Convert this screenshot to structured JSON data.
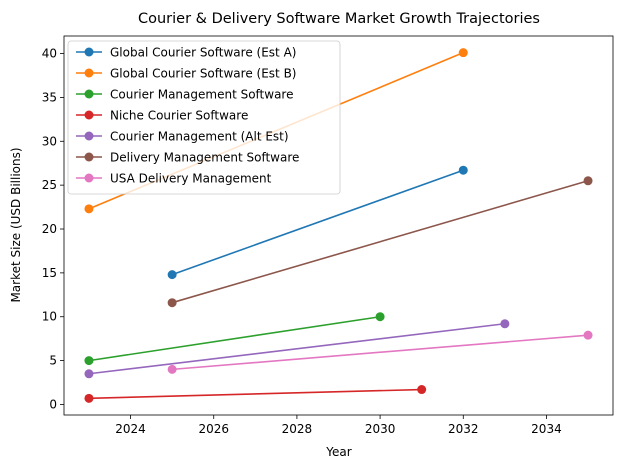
{
  "chart_data": {
    "type": "line",
    "title": "Courier & Delivery Software Market Growth Trajectories",
    "xlabel": "Year",
    "ylabel": "Market Size (USD Billions)",
    "xlim": [
      2022.4,
      2035.6
    ],
    "ylim": [
      -1.2,
      42.0
    ],
    "xticks": [
      2024,
      2026,
      2028,
      2030,
      2032,
      2034
    ],
    "yticks": [
      0,
      5,
      10,
      15,
      20,
      25,
      30,
      35,
      40
    ],
    "grid": false,
    "legend_position": "top-left",
    "series": [
      {
        "name": "Global Courier Software (Est A)",
        "color": "#1f77b4",
        "x": [
          2025,
          2032
        ],
        "y": [
          14.8,
          26.7
        ]
      },
      {
        "name": "Global Courier Software (Est B)",
        "color": "#ff7f0e",
        "x": [
          2023,
          2032
        ],
        "y": [
          22.3,
          40.1
        ]
      },
      {
        "name": "Courier Management Software",
        "color": "#2ca02c",
        "x": [
          2023,
          2030
        ],
        "y": [
          5.0,
          10.0
        ]
      },
      {
        "name": "Niche Courier Software",
        "color": "#d62728",
        "x": [
          2023,
          2031
        ],
        "y": [
          0.7,
          1.7
        ]
      },
      {
        "name": "Courier Management (Alt Est)",
        "color": "#9467bd",
        "x": [
          2023,
          2033
        ],
        "y": [
          3.5,
          9.2
        ]
      },
      {
        "name": "Delivery Management Software",
        "color": "#8c564b",
        "x": [
          2025,
          2035
        ],
        "y": [
          11.6,
          25.5
        ]
      },
      {
        "name": "USA Delivery Management",
        "color": "#e377c2",
        "x": [
          2025,
          2035
        ],
        "y": [
          4.0,
          7.9
        ]
      }
    ]
  }
}
